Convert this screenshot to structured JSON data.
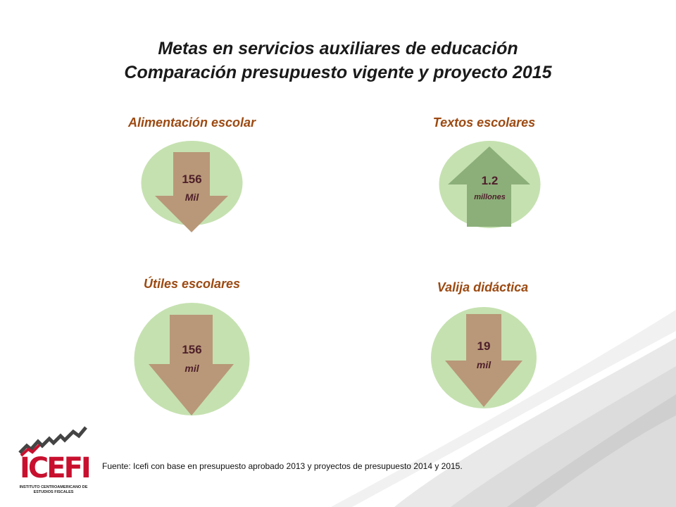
{
  "title": {
    "line1": "Metas en servicios auxiliares de educación",
    "line2": "Comparación presupuesto vigente y proyecto 2015"
  },
  "indicators": [
    {
      "label": "Alimentación escolar",
      "value": "156",
      "unit": "Mil",
      "direction": "down"
    },
    {
      "label": "Textos escolares",
      "value": "1.2",
      "unit": "millones",
      "direction": "up"
    },
    {
      "label": "Útiles escolares",
      "value": "156",
      "unit": "mil",
      "direction": "down"
    },
    {
      "label": "Valija didáctica",
      "value": "19",
      "unit": "mil",
      "direction": "down"
    }
  ],
  "source": "Fuente: Icefi con base en presupuesto aprobado 2013 y proyectos de presupuesto 2014 y 2015.",
  "logo": {
    "name": "ICEFI",
    "subtitle": "INSTITUTO CENTROAMERICANO DE ESTUDIOS FISCALES"
  },
  "colors": {
    "circle": "#c5e1b0",
    "arrow_down": "#b89878",
    "arrow_up": "#8caf7a",
    "label": "#9c4a12",
    "value_text": "#4e1f2a",
    "logo_red": "#c8102e"
  }
}
